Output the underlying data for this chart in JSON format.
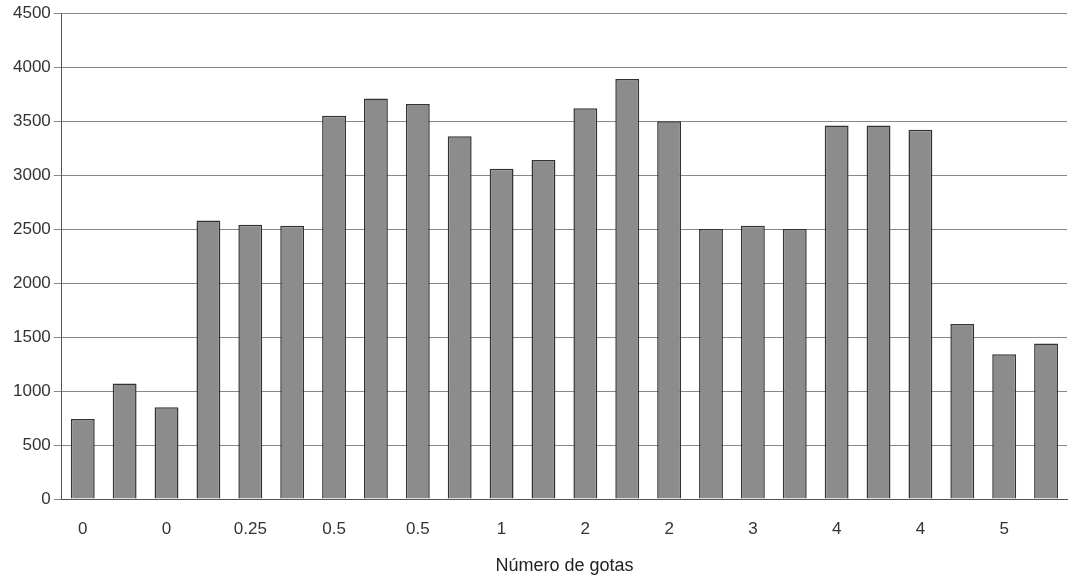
{
  "chart_data": {
    "type": "bar",
    "xlabel": "Número de gotas",
    "categories": [
      "0",
      null,
      "0",
      null,
      "0.25",
      null,
      "0.5",
      null,
      "0.5",
      null,
      "1",
      null,
      "2",
      null,
      "2",
      null,
      "3",
      null,
      "4",
      null,
      "4",
      null,
      "5",
      null
    ],
    "values": [
      740,
      1070,
      850,
      2580,
      2540,
      2530,
      3550,
      3710,
      3660,
      3360,
      3060,
      3140,
      3620,
      3890,
      3500,
      2500,
      2530,
      2500,
      3460,
      3460,
      3420,
      1620,
      1340,
      1440
    ],
    "color": "#8c8c8c",
    "ylim": [
      0,
      4500
    ],
    "yticks": [
      0,
      500,
      1000,
      1500,
      2000,
      2500,
      3000,
      3500,
      4000,
      4500
    ],
    "grid": "y"
  }
}
